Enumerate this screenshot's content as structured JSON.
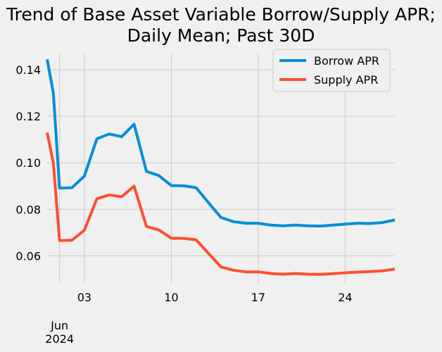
{
  "chart_data": {
    "type": "line",
    "title_lines": [
      "Trend of Base Asset Variable Borrow/Supply APR;",
      "Daily Mean; Past 30D"
    ],
    "xlabel": "",
    "ylabel": "",
    "x_start": "2024-05-31",
    "x_end": "2024-06-28",
    "x_tick_labels": [
      "03",
      "10",
      "17",
      "24"
    ],
    "x_tick_dates": [
      "2024-06-03",
      "2024-06-10",
      "2024-06-17",
      "2024-06-24"
    ],
    "x_minor_ticks": [
      "2024-06-01",
      "2024-06-02",
      "2024-06-04",
      "2024-06-05",
      "2024-06-06",
      "2024-06-07",
      "2024-06-08",
      "2024-06-09",
      "2024-06-11",
      "2024-06-12",
      "2024-06-13",
      "2024-06-14",
      "2024-06-15",
      "2024-06-16",
      "2024-06-18",
      "2024-06-19",
      "2024-06-20",
      "2024-06-21",
      "2024-06-22",
      "2024-06-23",
      "2024-06-25",
      "2024-06-26",
      "2024-06-27",
      "2024-06-28"
    ],
    "x_secondary_label": [
      "Jun",
      "2024"
    ],
    "x_secondary_date": "2024-06-01",
    "ylim": [
      0.048,
      0.147
    ],
    "y_ticks": [
      0.06,
      0.08,
      0.1,
      0.12,
      0.14
    ],
    "y_tick_labels": [
      "0.06",
      "0.08",
      "0.10",
      "0.12",
      "0.14"
    ],
    "grid": true,
    "legend_position": "top-right",
    "series": [
      {
        "name": "Borrow APR",
        "color": "#008fd5",
        "x": [
          "2024-05-31",
          "2024-05-31T12:00",
          "2024-06-01",
          "2024-06-02",
          "2024-06-03",
          "2024-06-04",
          "2024-06-05",
          "2024-06-06",
          "2024-06-07",
          "2024-06-08",
          "2024-06-09",
          "2024-06-10",
          "2024-06-11",
          "2024-06-12",
          "2024-06-13",
          "2024-06-14",
          "2024-06-15",
          "2024-06-16",
          "2024-06-17",
          "2024-06-18",
          "2024-06-19",
          "2024-06-20",
          "2024-06-21",
          "2024-06-22",
          "2024-06-23",
          "2024-06-24",
          "2024-06-25",
          "2024-06-26",
          "2024-06-27",
          "2024-06-28"
        ],
        "values": [
          0.1445,
          0.13,
          0.0891,
          0.0893,
          0.0943,
          0.1103,
          0.1124,
          0.1112,
          0.1166,
          0.0963,
          0.0945,
          0.0902,
          0.0901,
          0.0893,
          0.0828,
          0.0765,
          0.0747,
          0.074,
          0.074,
          0.0732,
          0.0729,
          0.0732,
          0.0729,
          0.0728,
          0.0732,
          0.0736,
          0.074,
          0.0739,
          0.0743,
          0.0754
        ]
      },
      {
        "name": "Supply APR",
        "color": "#fc4f30",
        "x": [
          "2024-05-31",
          "2024-05-31T12:00",
          "2024-06-01",
          "2024-06-02",
          "2024-06-03",
          "2024-06-04",
          "2024-06-05",
          "2024-06-06",
          "2024-06-07",
          "2024-06-08",
          "2024-06-09",
          "2024-06-10",
          "2024-06-11",
          "2024-06-12",
          "2024-06-13",
          "2024-06-14",
          "2024-06-15",
          "2024-06-16",
          "2024-06-17",
          "2024-06-18",
          "2024-06-19",
          "2024-06-20",
          "2024-06-21",
          "2024-06-22",
          "2024-06-23",
          "2024-06-24",
          "2024-06-25",
          "2024-06-26",
          "2024-06-27",
          "2024-06-28"
        ],
        "values": [
          0.113,
          0.1,
          0.0666,
          0.0667,
          0.071,
          0.0845,
          0.0862,
          0.0854,
          0.09,
          0.0726,
          0.0711,
          0.0676,
          0.0675,
          0.0669,
          0.061,
          0.0552,
          0.0538,
          0.0531,
          0.0531,
          0.0524,
          0.0521,
          0.0524,
          0.0521,
          0.052,
          0.0523,
          0.0527,
          0.053,
          0.0532,
          0.0535,
          0.0543
        ]
      }
    ]
  }
}
